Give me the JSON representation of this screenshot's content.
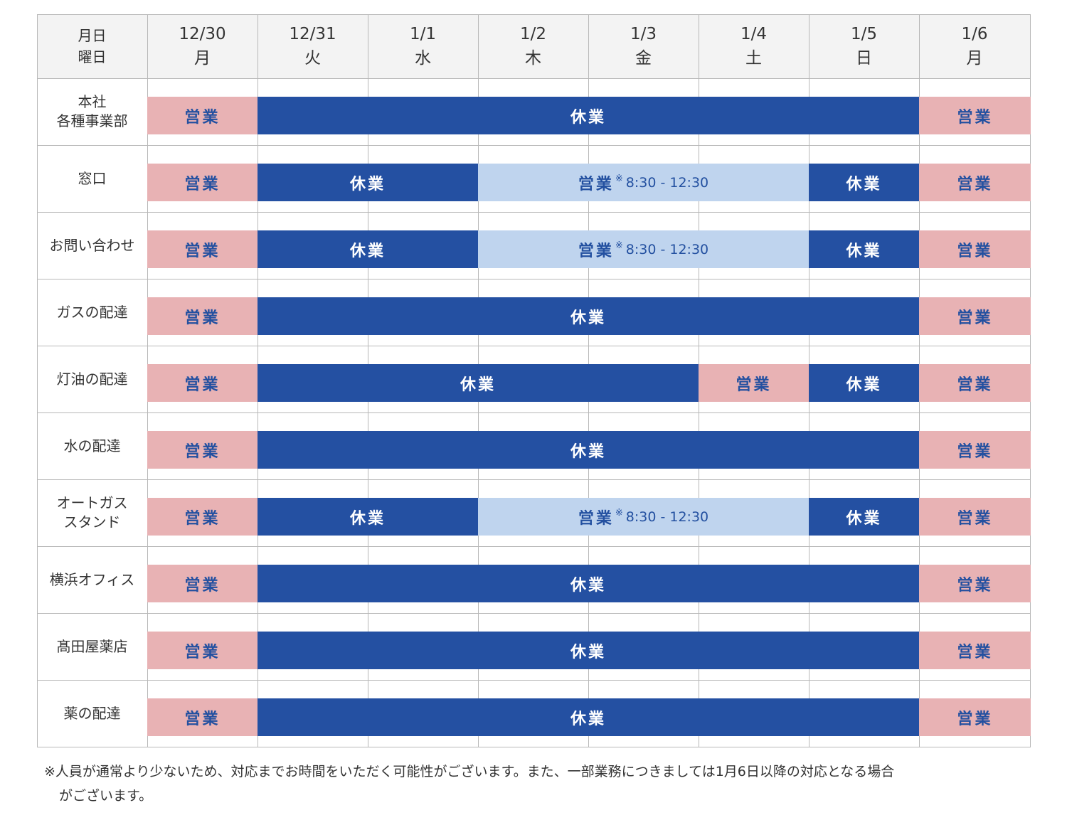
{
  "header": {
    "corner": [
      "月日",
      "曜日"
    ],
    "days": [
      {
        "date": "12/30",
        "weekday": "月"
      },
      {
        "date": "12/31",
        "weekday": "火"
      },
      {
        "date": "1/1",
        "weekday": "水"
      },
      {
        "date": "1/2",
        "weekday": "木"
      },
      {
        "date": "1/3",
        "weekday": "金"
      },
      {
        "date": "1/4",
        "weekday": "土"
      },
      {
        "date": "1/5",
        "weekday": "日"
      },
      {
        "date": "1/6",
        "weekday": "月"
      }
    ]
  },
  "colors": {
    "open": "#e8b2b4",
    "open_text": "#2350a0",
    "closed": "#2450a2",
    "closed_text": "#ffffff",
    "partial": "#bfd4ee",
    "partial_text": "#2350a0",
    "grid": "#b8b8b8",
    "header_bg": "#f3f3f3"
  },
  "rows": [
    {
      "label": "本社\n各種事業部",
      "segments": [
        {
          "from": 0,
          "to": 1,
          "status": "open",
          "text": "営業"
        },
        {
          "from": 1,
          "to": 7,
          "status": "closed",
          "text": "休業"
        },
        {
          "from": 7,
          "to": 8,
          "status": "open",
          "text": "営業"
        }
      ]
    },
    {
      "label": "窓口",
      "segments": [
        {
          "from": 0,
          "to": 1,
          "status": "open",
          "text": "営業"
        },
        {
          "from": 1,
          "to": 3,
          "status": "closed",
          "text": "休業"
        },
        {
          "from": 3,
          "to": 6,
          "status": "partial",
          "text": "営業",
          "note": "※",
          "time": "8:30 - 12:30"
        },
        {
          "from": 6,
          "to": 7,
          "status": "closed",
          "text": "休業"
        },
        {
          "from": 7,
          "to": 8,
          "status": "open",
          "text": "営業"
        }
      ]
    },
    {
      "label": "お問い合わせ",
      "segments": [
        {
          "from": 0,
          "to": 1,
          "status": "open",
          "text": "営業"
        },
        {
          "from": 1,
          "to": 3,
          "status": "closed",
          "text": "休業"
        },
        {
          "from": 3,
          "to": 6,
          "status": "partial",
          "text": "営業",
          "note": "※",
          "time": "8:30 - 12:30"
        },
        {
          "from": 6,
          "to": 7,
          "status": "closed",
          "text": "休業"
        },
        {
          "from": 7,
          "to": 8,
          "status": "open",
          "text": "営業"
        }
      ]
    },
    {
      "label": "ガスの配達",
      "segments": [
        {
          "from": 0,
          "to": 1,
          "status": "open",
          "text": "営業"
        },
        {
          "from": 1,
          "to": 7,
          "status": "closed",
          "text": "休業"
        },
        {
          "from": 7,
          "to": 8,
          "status": "open",
          "text": "営業"
        }
      ]
    },
    {
      "label": "灯油の配達",
      "segments": [
        {
          "from": 0,
          "to": 1,
          "status": "open",
          "text": "営業"
        },
        {
          "from": 1,
          "to": 5,
          "status": "closed",
          "text": "休業"
        },
        {
          "from": 5,
          "to": 6,
          "status": "open",
          "text": "営業"
        },
        {
          "from": 6,
          "to": 7,
          "status": "closed",
          "text": "休業"
        },
        {
          "from": 7,
          "to": 8,
          "status": "open",
          "text": "営業"
        }
      ]
    },
    {
      "label": "水の配達",
      "segments": [
        {
          "from": 0,
          "to": 1,
          "status": "open",
          "text": "営業"
        },
        {
          "from": 1,
          "to": 7,
          "status": "closed",
          "text": "休業"
        },
        {
          "from": 7,
          "to": 8,
          "status": "open",
          "text": "営業"
        }
      ]
    },
    {
      "label": "オートガス\nスタンド",
      "segments": [
        {
          "from": 0,
          "to": 1,
          "status": "open",
          "text": "営業"
        },
        {
          "from": 1,
          "to": 3,
          "status": "closed",
          "text": "休業"
        },
        {
          "from": 3,
          "to": 6,
          "status": "partial",
          "text": "営業",
          "note": "※",
          "time": "8:30 - 12:30"
        },
        {
          "from": 6,
          "to": 7,
          "status": "closed",
          "text": "休業"
        },
        {
          "from": 7,
          "to": 8,
          "status": "open",
          "text": "営業"
        }
      ]
    },
    {
      "label": "横浜オフィス",
      "segments": [
        {
          "from": 0,
          "to": 1,
          "status": "open",
          "text": "営業"
        },
        {
          "from": 1,
          "to": 7,
          "status": "closed",
          "text": "休業"
        },
        {
          "from": 7,
          "to": 8,
          "status": "open",
          "text": "営業"
        }
      ]
    },
    {
      "label": "髙田屋薬店",
      "segments": [
        {
          "from": 0,
          "to": 1,
          "status": "open",
          "text": "営業"
        },
        {
          "from": 1,
          "to": 7,
          "status": "closed",
          "text": "休業"
        },
        {
          "from": 7,
          "to": 8,
          "status": "open",
          "text": "営業"
        }
      ]
    },
    {
      "label": "薬の配達",
      "segments": [
        {
          "from": 0,
          "to": 1,
          "status": "open",
          "text": "営業"
        },
        {
          "from": 1,
          "to": 7,
          "status": "closed",
          "text": "休業"
        },
        {
          "from": 7,
          "to": 8,
          "status": "open",
          "text": "営業"
        }
      ]
    }
  ],
  "footnote": {
    "line1": "※人員が通常より少ないため、対応までお時間をいただく可能性がございます。また、一部業務につきましては1月6日以降の対応となる場合",
    "line2": "がございます。"
  }
}
